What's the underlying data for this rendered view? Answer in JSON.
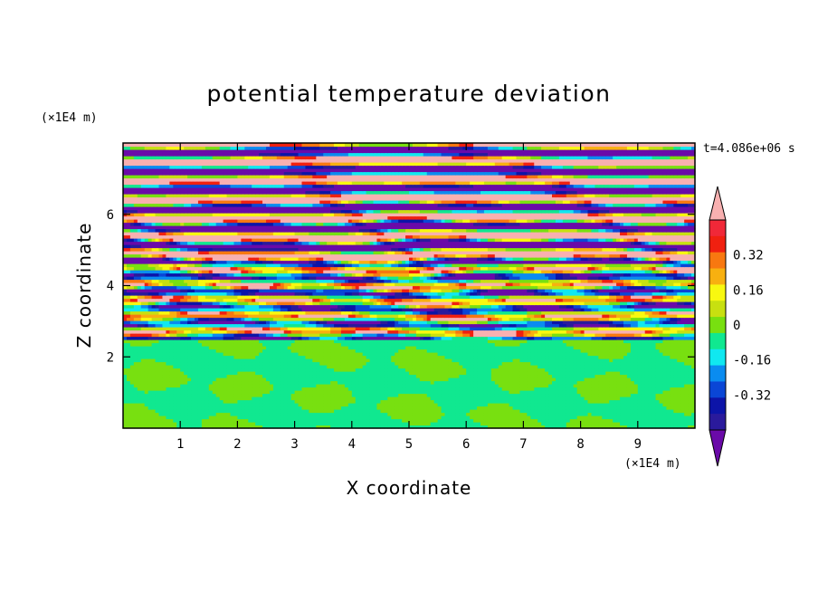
{
  "chart_data": {
    "type": "heatmap",
    "title": "potential temperature deviation",
    "xlabel": "X coordinate",
    "ylabel": "Z coordinate",
    "x_unit": "(×1E4 m)",
    "y_unit": "(×1E4 m)",
    "time_label": "t=4.086e+06 s",
    "x_ticks": [
      1,
      2,
      3,
      4,
      5,
      6,
      7,
      8,
      9
    ],
    "y_ticks": [
      2,
      4,
      6
    ],
    "xlim": [
      0,
      10
    ],
    "ylim": [
      0,
      8
    ],
    "colorbar": {
      "levels": [
        -0.48,
        -0.4,
        -0.32,
        -0.24,
        -0.16,
        -0.08,
        0,
        0.08,
        0.16,
        0.24,
        0.32,
        0.4,
        0.48
      ],
      "colors": [
        "#6a0aa8",
        "#2a1a9c",
        "#0c14a8",
        "#0a46d6",
        "#0a8cf0",
        "#10e8f0",
        "#10e890",
        "#78e010",
        "#c8e010",
        "#f8f810",
        "#f8b010",
        "#f87810",
        "#f02010",
        "#f02838",
        "#f8b0b0"
      ],
      "labels": [
        "0.32",
        "0.16",
        "0",
        "-0.16",
        "-0.32"
      ],
      "label_values": [
        0.32,
        0.16,
        0,
        -0.16,
        -0.32
      ],
      "extend": "both"
    }
  }
}
